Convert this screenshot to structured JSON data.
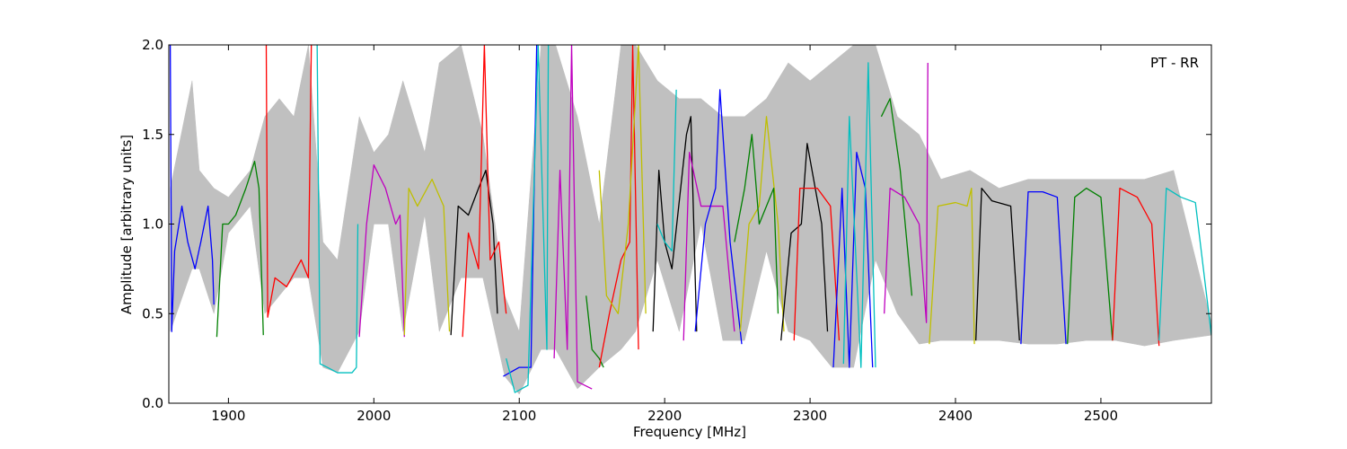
{
  "chart_data": {
    "type": "line",
    "annotation": "PT - RR",
    "xlabel": "Frequency [MHz]",
    "ylabel": "Amplitude [arbitrary units]",
    "xlim": [
      1859,
      2576
    ],
    "ylim": [
      0,
      2
    ],
    "xticks": [
      1900,
      2000,
      2100,
      2200,
      2300,
      2400,
      2500
    ],
    "yticks": [
      {
        "value": 0,
        "label": "0.0"
      },
      0.5,
      {
        "value": 1,
        "label": "1.0"
      },
      1.5,
      {
        "value": 2,
        "label": "2.0"
      }
    ],
    "band": {
      "color": "#c0c0c0",
      "x": [
        1860,
        1875,
        1880,
        1890,
        1900,
        1915,
        1925,
        1935,
        1945,
        1955,
        1965,
        1975,
        1990,
        2000,
        2010,
        2020,
        2035,
        2045,
        2060,
        2075,
        2090,
        2100,
        2115,
        2125,
        2140,
        2155,
        2170,
        2180,
        2195,
        2210,
        2225,
        2240,
        2255,
        2270,
        2285,
        2300,
        2315,
        2330,
        2345,
        2360,
        2375,
        2390,
        2410,
        2430,
        2450,
        2470,
        2490,
        2510,
        2530,
        2550,
        2576
      ],
      "upper": [
        1.2,
        1.8,
        1.3,
        1.2,
        1.15,
        1.3,
        1.6,
        1.7,
        1.6,
        2.0,
        0.9,
        0.8,
        1.6,
        1.4,
        1.5,
        1.8,
        1.4,
        1.9,
        2.0,
        1.5,
        0.6,
        0.4,
        2.0,
        2.0,
        1.6,
        1.0,
        2.0,
        2.0,
        1.8,
        1.7,
        1.7,
        1.6,
        1.6,
        1.7,
        1.9,
        1.8,
        1.9,
        2.0,
        2.0,
        1.6,
        1.5,
        1.25,
        1.3,
        1.2,
        1.25,
        1.25,
        1.25,
        1.25,
        1.25,
        1.3,
        0.45
      ],
      "lower": [
        0.4,
        0.75,
        0.75,
        0.5,
        0.95,
        1.1,
        0.5,
        0.6,
        0.7,
        0.7,
        0.2,
        0.17,
        0.4,
        1.0,
        1.0,
        0.4,
        1.05,
        0.4,
        0.7,
        0.7,
        0.15,
        0.05,
        0.3,
        0.3,
        0.08,
        0.2,
        0.3,
        0.4,
        0.8,
        0.4,
        1.0,
        0.35,
        0.35,
        0.85,
        0.4,
        0.35,
        0.2,
        0.2,
        0.8,
        0.5,
        0.33,
        0.35,
        0.35,
        0.35,
        0.33,
        0.33,
        0.35,
        0.35,
        0.32,
        0.35,
        0.38
      ]
    },
    "series": [
      {
        "color": "#0000ff",
        "x": [
          1860,
          1861,
          1863,
          1868,
          1872,
          1877,
          1881,
          1886,
          1889,
          1890
        ],
        "values": [
          2.0,
          0.4,
          0.85,
          1.1,
          0.9,
          0.75,
          0.9,
          1.1,
          0.8,
          0.55
        ]
      },
      {
        "color": "#008000",
        "x": [
          1892,
          1896,
          1900,
          1905,
          1912,
          1918,
          1921,
          1924
        ],
        "values": [
          0.37,
          1.0,
          1.0,
          1.05,
          1.2,
          1.35,
          1.2,
          0.38
        ]
      },
      {
        "color": "#ff0000",
        "x": [
          1926,
          1927,
          1932,
          1940,
          1950,
          1955,
          1957
        ],
        "values": [
          2.0,
          0.48,
          0.7,
          0.65,
          0.8,
          0.7,
          2.0
        ]
      },
      {
        "color": "#00bfbf",
        "x": [
          1961,
          1963,
          1968,
          1975,
          1985,
          1988,
          1989
        ],
        "values": [
          2.0,
          0.22,
          0.2,
          0.17,
          0.17,
          0.2,
          1.0
        ]
      },
      {
        "color": "#bf00bf",
        "x": [
          1990,
          1995,
          2000,
          2008,
          2015,
          2018,
          2021
        ],
        "values": [
          0.37,
          1.0,
          1.33,
          1.2,
          1.0,
          1.05,
          0.37
        ]
      },
      {
        "color": "#bfbf00",
        "x": [
          2021,
          2024,
          2030,
          2040,
          2048,
          2052
        ],
        "values": [
          0.38,
          1.2,
          1.1,
          1.25,
          1.1,
          0.4
        ]
      },
      {
        "color": "#000000",
        "x": [
          2053,
          2058,
          2065,
          2072,
          2077,
          2082,
          2085
        ],
        "values": [
          0.38,
          1.1,
          1.05,
          1.2,
          1.3,
          1.0,
          0.5
        ]
      },
      {
        "color": "#ff0000",
        "x": [
          2061,
          2065,
          2072,
          2076,
          2080,
          2086,
          2091
        ],
        "values": [
          0.37,
          0.95,
          0.75,
          2.0,
          0.8,
          0.9,
          0.5
        ]
      },
      {
        "color": "#0000ff",
        "x": [
          2089,
          2100,
          2108,
          2112
        ],
        "values": [
          0.15,
          0.2,
          0.2,
          2.0
        ]
      },
      {
        "color": "#00bfbf",
        "x": [
          2091,
          2097,
          2106,
          2113,
          2119,
          2120
        ],
        "values": [
          0.25,
          0.06,
          0.1,
          2.0,
          0.3,
          2.0
        ]
      },
      {
        "color": "#bf00bf",
        "x": [
          2124,
          2128,
          2133,
          2136,
          2140,
          2150
        ],
        "values": [
          0.25,
          1.3,
          0.3,
          2.0,
          0.12,
          0.08
        ]
      },
      {
        "color": "#008000",
        "x": [
          2146,
          2150,
          2155,
          2158
        ],
        "values": [
          0.6,
          0.3,
          0.25,
          0.2
        ]
      },
      {
        "color": "#ff0000",
        "x": [
          2155,
          2162,
          2170,
          2176,
          2178,
          2182
        ],
        "values": [
          0.2,
          0.5,
          0.8,
          0.9,
          2.0,
          0.3
        ]
      },
      {
        "color": "#bfbf00",
        "x": [
          2155,
          2160,
          2168,
          2175,
          2182,
          2187
        ],
        "values": [
          1.3,
          0.6,
          0.5,
          1.0,
          2.0,
          0.5
        ]
      },
      {
        "color": "#000000",
        "x": [
          2192,
          2196,
          2200,
          2205,
          2215,
          2218,
          2222
        ],
        "values": [
          0.4,
          1.3,
          0.9,
          0.75,
          1.5,
          1.6,
          0.4
        ]
      },
      {
        "color": "#00bfbf",
        "x": [
          2195,
          2200,
          2205,
          2208
        ],
        "values": [
          1.0,
          0.9,
          0.85,
          1.75
        ]
      },
      {
        "color": "#bf00bf",
        "x": [
          2213,
          2217,
          2225,
          2240,
          2248
        ],
        "values": [
          0.35,
          1.4,
          1.1,
          1.1,
          0.4
        ]
      },
      {
        "color": "#0000ff",
        "x": [
          2221,
          2228,
          2235,
          2238,
          2245,
          2253
        ],
        "values": [
          0.4,
          1.0,
          1.2,
          1.75,
          0.9,
          0.33
        ]
      },
      {
        "color": "#bfbf00",
        "x": [
          2252,
          2258,
          2265,
          2270,
          2278,
          2282
        ],
        "values": [
          0.4,
          1.0,
          1.1,
          1.6,
          1.0,
          0.4
        ]
      },
      {
        "color": "#008000",
        "x": [
          2248,
          2255,
          2260,
          2265,
          2275,
          2278
        ],
        "values": [
          0.9,
          1.2,
          1.5,
          1.0,
          1.2,
          0.5
        ]
      },
      {
        "color": "#000000",
        "x": [
          2280,
          2287,
          2294,
          2298,
          2308,
          2312
        ],
        "values": [
          0.35,
          0.95,
          1.0,
          1.45,
          1.0,
          0.4
        ]
      },
      {
        "color": "#ff0000",
        "x": [
          2289,
          2293,
          2305,
          2314,
          2320
        ],
        "values": [
          0.35,
          1.2,
          1.2,
          1.1,
          0.35
        ]
      },
      {
        "color": "#0000ff",
        "x": [
          2316,
          2322,
          2327,
          2332,
          2338,
          2343
        ],
        "values": [
          0.2,
          1.2,
          0.2,
          1.4,
          1.2,
          0.2
        ]
      },
      {
        "color": "#00bfbf",
        "x": [
          2323,
          2327,
          2335,
          2340,
          2345
        ],
        "values": [
          0.22,
          1.6,
          0.2,
          1.9,
          0.2
        ]
      },
      {
        "color": "#008000",
        "x": [
          2349,
          2355,
          2362,
          2370
        ],
        "values": [
          1.6,
          1.7,
          1.3,
          0.6
        ]
      },
      {
        "color": "#bf00bf",
        "x": [
          2351,
          2355,
          2365,
          2375,
          2380,
          2381
        ],
        "values": [
          0.5,
          1.2,
          1.15,
          1.0,
          0.45,
          1.9
        ]
      },
      {
        "color": "#bfbf00",
        "x": [
          2382,
          2388,
          2400,
          2408,
          2411,
          2413
        ],
        "values": [
          0.33,
          1.1,
          1.12,
          1.1,
          1.2,
          0.33
        ]
      },
      {
        "color": "#000000",
        "x": [
          2414,
          2418,
          2425,
          2438,
          2444
        ],
        "values": [
          0.35,
          1.2,
          1.13,
          1.1,
          0.35
        ]
      },
      {
        "color": "#0000ff",
        "x": [
          2445,
          2450,
          2460,
          2470,
          2476
        ],
        "values": [
          0.33,
          1.18,
          1.18,
          1.15,
          0.33
        ]
      },
      {
        "color": "#008000",
        "x": [
          2477,
          2482,
          2490,
          2500,
          2508
        ],
        "values": [
          0.33,
          1.15,
          1.2,
          1.15,
          0.35
        ]
      },
      {
        "color": "#ff0000",
        "x": [
          2508,
          2513,
          2525,
          2535,
          2540
        ],
        "values": [
          0.35,
          1.2,
          1.15,
          1.0,
          0.32
        ]
      },
      {
        "color": "#00bfbf",
        "x": [
          2540,
          2545,
          2555,
          2565,
          2576
        ],
        "values": [
          0.35,
          1.2,
          1.15,
          1.12,
          0.38
        ]
      }
    ]
  }
}
